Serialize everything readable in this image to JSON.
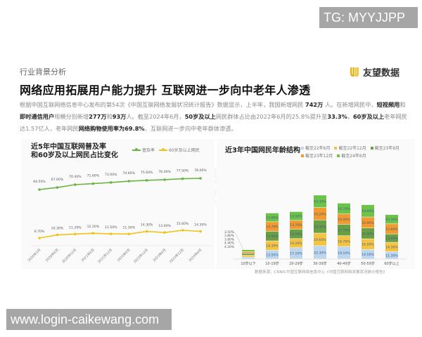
{
  "watermarks": {
    "top_right": "TG: MYYJJPP",
    "bottom_left": "www.login-caikewang.com",
    "background_text": "友望数据"
  },
  "header": {
    "section_tag": "行业背景分析",
    "title": "网络应用拓展用户能力提升  互联网进一步向中老年人渗透",
    "logo_text": "友望数据",
    "logo_color": "#e8b21a"
  },
  "paragraph": {
    "segments": [
      {
        "t": "根据中国互联网络信息中心发布的第54次《中国互联网络发展状况统计报告》数据显示，上半年，我国新增网民 ",
        "b": false
      },
      {
        "t": "742万",
        "b": true
      },
      {
        "t": " 人。在新增网民中，",
        "b": false
      },
      {
        "t": "短视频用",
        "b": true
      },
      {
        "t": "和",
        "b": false
      },
      {
        "t": "即时通信用户",
        "b": true
      },
      {
        "t": "规模分别新增",
        "b": false
      },
      {
        "t": "277万",
        "b": true
      },
      {
        "t": "和",
        "b": false
      },
      {
        "t": "93万",
        "b": true
      },
      {
        "t": "人。截至2024年6月，",
        "b": false
      },
      {
        "t": "50岁及以上",
        "b": true
      },
      {
        "t": "网民群体占比由2022年6月的25.8%提升至",
        "b": false
      },
      {
        "t": "33.3%",
        "b": true
      },
      {
        "t": "，",
        "b": false
      },
      {
        "t": "60岁及以上",
        "b": true
      },
      {
        "t": "老年网民达1.57亿人，老年网民",
        "b": false
      },
      {
        "t": "网络购物使用率为69.8%",
        "b": true
      },
      {
        "t": "，互联网进一步向中老年群体渗透。",
        "b": false
      }
    ]
  },
  "source": "数据来源：CNNIC中国互联网络信息中心《中国互联网络发展状况统计报告》",
  "chart_data": [
    {
      "type": "line",
      "title": "近5年中国互联网普及率和60岁及以上网民占比变化",
      "title_lines": [
        "近5年中国互联网普及率",
        "和60岁及以上网民占比变化"
      ],
      "categories": [
        "2020年3月",
        "2020年6月",
        "2020年12月",
        "2021年6月",
        "2021年12月",
        "2022年6月",
        "2022年12月",
        "2023年6月",
        "2023年12月",
        "2024年6月"
      ],
      "series": [
        {
          "name": "普及率",
          "color": "#6ab344",
          "values": [
            64.5,
            67.0,
            70.4,
            71.6,
            73.0,
            74.6,
            75.6,
            76.4,
            77.5,
            78.0
          ],
          "labels": [
            "64.50%",
            "67.00%",
            "70.40%",
            "71.60%",
            "73.00%",
            "74.60%",
            "75.60%",
            "76.40%",
            "77.50%",
            "78.00%"
          ]
        },
        {
          "name": "60岁及以上网民",
          "color": "#f0c419",
          "values": [
            6.7,
            10.3,
            11.2,
            12.2,
            11.5,
            11.3,
            14.3,
            13.0,
            15.6,
            14.3
          ],
          "labels": [
            "6.70%",
            "10.30%",
            "11.20%",
            "12.20%",
            "11.50%",
            "11.30%",
            "14.30%",
            "13.00%",
            "15.60%",
            "14.30%"
          ]
        }
      ],
      "xlabel": "",
      "ylabel": "",
      "grid": false,
      "legend_position": "top-right"
    },
    {
      "type": "bar",
      "stacked": true,
      "title": "近3年中国网民年龄结构",
      "categories": [
        "10岁以下",
        "10-19岁",
        "20-29岁",
        "30-39岁",
        "40-49岁",
        "50-59岁",
        "60岁以上"
      ],
      "series": [
        {
          "name": "截至22年6月",
          "color": "#bcd6ee",
          "values": [
            4.2,
            13.5,
            17.2,
            20.3,
            19.1,
            14.5,
            11.3
          ]
        },
        {
          "name": "截至22年12月",
          "color": "#f5c342",
          "values": [
            4.4,
            14.3,
            14.2,
            19.6,
            16.7,
            16.5,
            14.3
          ]
        },
        {
          "name": "截至23年6月",
          "color": "#6a9f45",
          "values": [
            3.8,
            14.9,
            14.5,
            20.3,
            17.7,
            16.9,
            13.0
          ]
        },
        {
          "name": "截至23年12月",
          "color": "#f29a2e",
          "values": [
            3.8,
            14.7,
            13.7,
            19.2,
            16.0,
            16.9,
            15.6
          ]
        },
        {
          "name": "截至24年6月",
          "color": "#6cc24a",
          "values": [
            3.5,
            13.6,
            13.5,
            19.3,
            16.7,
            19.0,
            14.3
          ]
        }
      ],
      "labels_first_bar": [
        "3.50%",
        "3.80%",
        "3.80%",
        "4.40%",
        "4.20%"
      ],
      "xlabel": "",
      "ylabel": "",
      "grid": false,
      "legend_position": "top-right"
    }
  ]
}
